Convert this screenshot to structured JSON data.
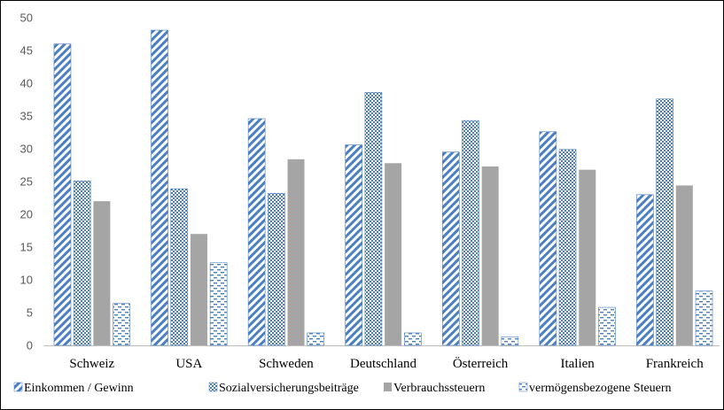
{
  "chart_data": {
    "type": "bar",
    "title": "",
    "xlabel": "",
    "ylabel": "",
    "ylim": [
      0,
      50
    ],
    "yticks": [
      0,
      5,
      10,
      15,
      20,
      25,
      30,
      35,
      40,
      45,
      50
    ],
    "grid": false,
    "legend_position": "bottom",
    "categories": [
      "Schweiz",
      "USA",
      "Schweden",
      "Deutschland",
      "Österreich",
      "Italien",
      "Frankreich"
    ],
    "series": [
      {
        "name": "Einkommen / Gewinn",
        "values": [
          46.0,
          48.1,
          34.6,
          30.6,
          29.5,
          32.6,
          23.0
        ]
      },
      {
        "name": "Sozialversicherungsbeiträge",
        "values": [
          25.1,
          23.9,
          23.2,
          38.6,
          34.3,
          29.9,
          37.6
        ]
      },
      {
        "name": "Verbrauchssteuern",
        "values": [
          22.0,
          17.0,
          28.4,
          27.8,
          27.3,
          26.8,
          24.4
        ]
      },
      {
        "name": "vermögensbezogene Steuern",
        "values": [
          6.4,
          12.6,
          1.9,
          1.9,
          1.3,
          5.8,
          8.3
        ]
      }
    ],
    "colors": {
      "pattern": "#4a7fc4",
      "solid": "#a5a5a5",
      "axis": "#bfbfbf",
      "tick_text": "#595959"
    }
  }
}
